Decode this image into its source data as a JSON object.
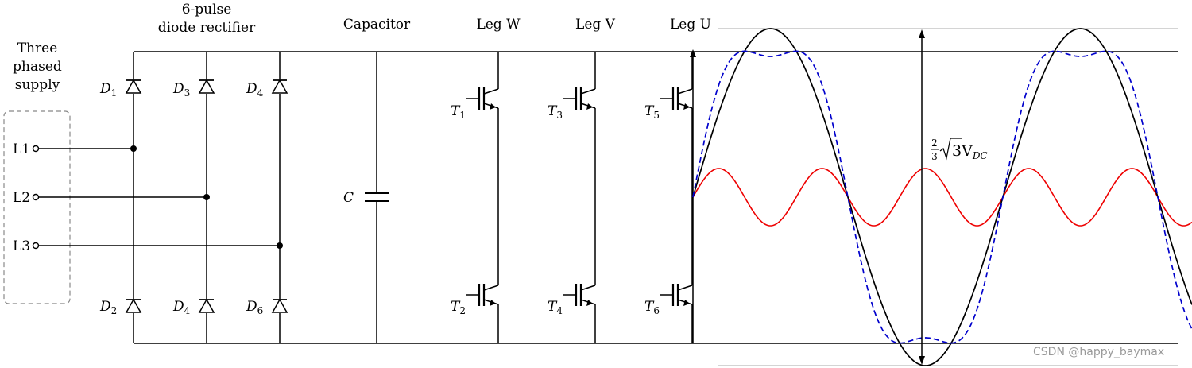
{
  "labels": {
    "supply_line1": "Three",
    "supply_line2": "phased",
    "supply_line3": "supply",
    "rectifier_line1": "6-pulse",
    "rectifier_line2": "diode rectifier",
    "capacitor_title": "Capacitor",
    "leg_w": "Leg W",
    "leg_v": "Leg V",
    "leg_u": "Leg U",
    "capacitor_symbol": "C",
    "vdc_label_main": "3V",
    "vdc_label_sub": "DC",
    "fraction_num": "2",
    "fraction_den": "3"
  },
  "terminals": [
    {
      "label": "L1"
    },
    {
      "label": "L2"
    },
    {
      "label": "L3"
    }
  ],
  "diodes": [
    {
      "letter": "D",
      "sub": "1"
    },
    {
      "letter": "D",
      "sub": "3"
    },
    {
      "letter": "D",
      "sub": "4"
    },
    {
      "letter": "D",
      "sub": "2"
    },
    {
      "letter": "D",
      "sub": "4"
    },
    {
      "letter": "D",
      "sub": "6"
    }
  ],
  "transistors": [
    {
      "letter": "T",
      "sub": "1"
    },
    {
      "letter": "T",
      "sub": "3"
    },
    {
      "letter": "T",
      "sub": "5"
    },
    {
      "letter": "T",
      "sub": "2"
    },
    {
      "letter": "T",
      "sub": "4"
    },
    {
      "letter": "T",
      "sub": "6"
    }
  ],
  "waveforms": {
    "colors": {
      "black": "#000000",
      "blue": "#0000cc",
      "red": "#ee0000",
      "grid": "#bbbbbb"
    }
  },
  "watermark": "CSDN @happy_baymax"
}
